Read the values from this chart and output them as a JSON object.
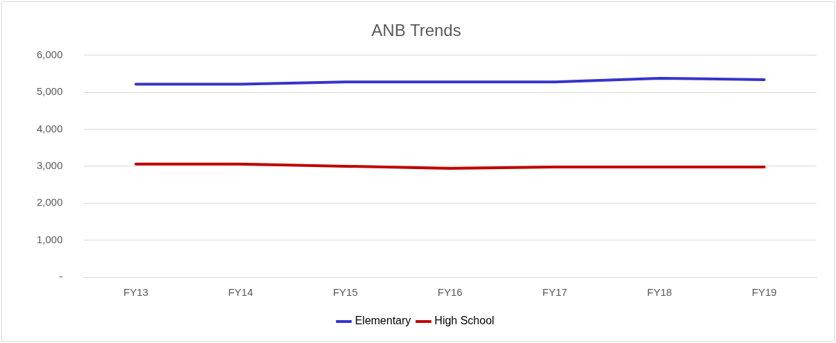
{
  "chart_data": {
    "type": "line",
    "title": "ANB Trends",
    "categories": [
      "FY13",
      "FY14",
      "FY15",
      "FY16",
      "FY17",
      "FY18",
      "FY19"
    ],
    "series": [
      {
        "name": "Elementary",
        "color": "#3434cc",
        "values": [
          5220,
          5220,
          5280,
          5280,
          5280,
          5380,
          5340
        ]
      },
      {
        "name": "High School",
        "color": "#c00000",
        "values": [
          3060,
          3060,
          3000,
          2940,
          2980,
          2980,
          2980
        ]
      }
    ],
    "ylim": [
      0,
      6000
    ],
    "yticks": [
      {
        "value": 0,
        "label": "-"
      },
      {
        "value": 1000,
        "label": "1,000"
      },
      {
        "value": 2000,
        "label": "2,000"
      },
      {
        "value": 3000,
        "label": "3,000"
      },
      {
        "value": 4000,
        "label": "4,000"
      },
      {
        "value": 5000,
        "label": "5,000"
      },
      {
        "value": 6000,
        "label": "6,000"
      }
    ],
    "grid": "y",
    "legend": "bottom",
    "marker": "none",
    "line_style": "solid"
  }
}
